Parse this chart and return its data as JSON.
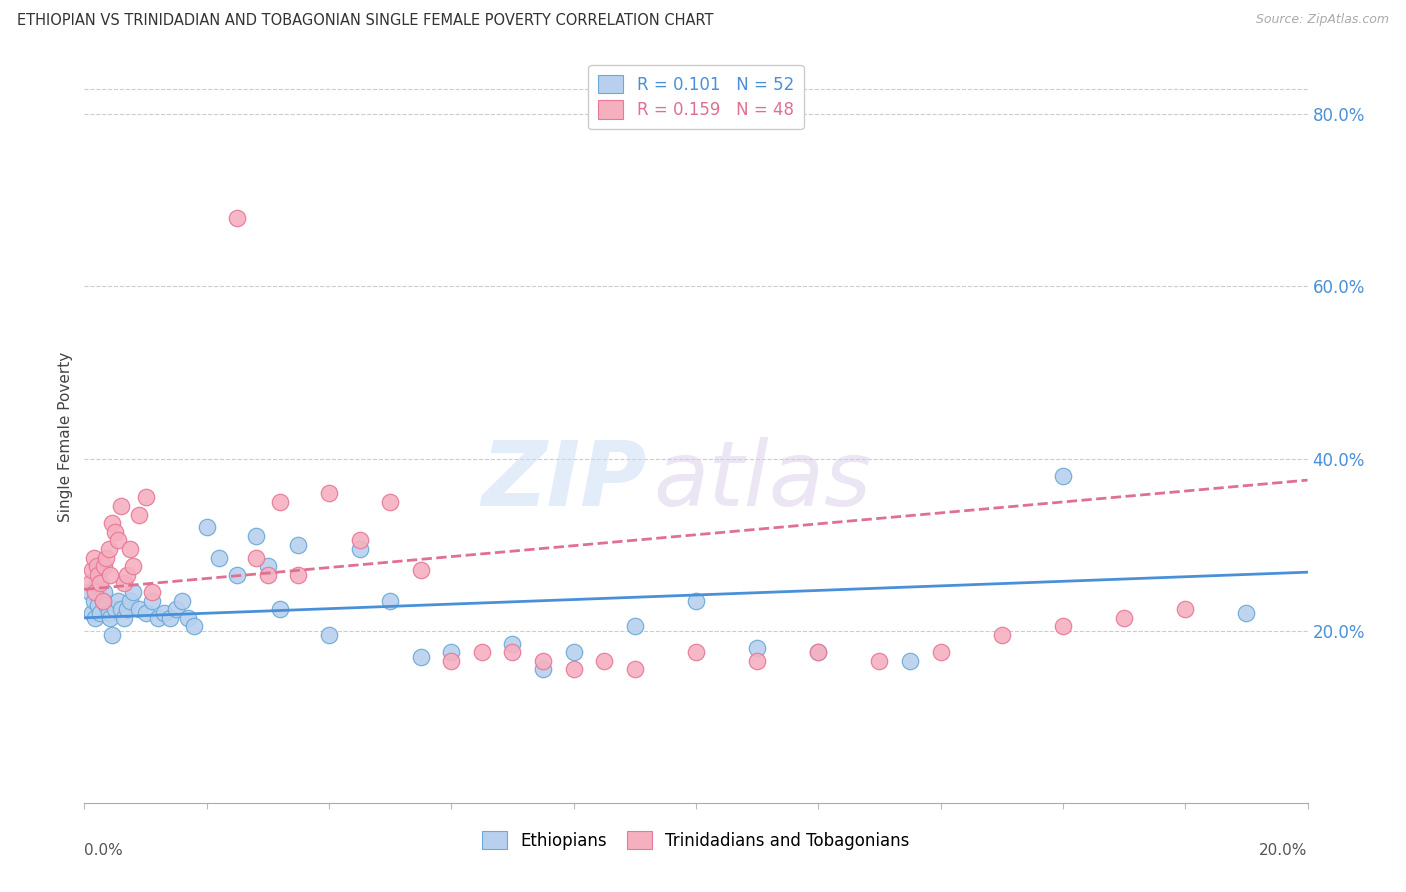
{
  "title": "ETHIOPIAN VS TRINIDADIAN AND TOBAGONIAN SINGLE FEMALE POVERTY CORRELATION CHART",
  "source": "Source: ZipAtlas.com",
  "ylabel": "Single Female Poverty",
  "blue_face": "#b8d0ee",
  "blue_edge": "#6aaad8",
  "pink_face": "#f5b0c0",
  "pink_edge": "#e87898",
  "blue_line": "#4a90d9",
  "pink_line": "#e07090",
  "right_tick_color": "#4a90d9",
  "yticks": [
    0.2,
    0.4,
    0.6,
    0.8
  ],
  "ytick_labels": [
    "20.0%",
    "40.0%",
    "60.0%",
    "80.0%"
  ],
  "xlim": [
    0.0,
    0.2
  ],
  "ylim": [
    0.0,
    0.85
  ],
  "blue_r": "0.101",
  "blue_n": "52",
  "pink_r": "0.159",
  "pink_n": "48",
  "eth_x": [
    0.001,
    0.0012,
    0.0015,
    0.0018,
    0.002,
    0.0022,
    0.0025,
    0.003,
    0.0032,
    0.0035,
    0.004,
    0.0042,
    0.0045,
    0.005,
    0.0055,
    0.006,
    0.0065,
    0.007,
    0.0075,
    0.008,
    0.009,
    0.01,
    0.011,
    0.012,
    0.013,
    0.014,
    0.015,
    0.016,
    0.017,
    0.018,
    0.02,
    0.022,
    0.025,
    0.028,
    0.03,
    0.032,
    0.035,
    0.04,
    0.045,
    0.05,
    0.055,
    0.06,
    0.07,
    0.075,
    0.08,
    0.09,
    0.1,
    0.11,
    0.12,
    0.135,
    0.16,
    0.19
  ],
  "eth_y": [
    0.245,
    0.22,
    0.235,
    0.215,
    0.255,
    0.23,
    0.22,
    0.235,
    0.245,
    0.23,
    0.22,
    0.215,
    0.195,
    0.225,
    0.235,
    0.225,
    0.215,
    0.225,
    0.235,
    0.245,
    0.225,
    0.22,
    0.235,
    0.215,
    0.22,
    0.215,
    0.225,
    0.235,
    0.215,
    0.205,
    0.32,
    0.285,
    0.265,
    0.31,
    0.275,
    0.225,
    0.3,
    0.195,
    0.295,
    0.235,
    0.17,
    0.175,
    0.185,
    0.155,
    0.175,
    0.205,
    0.235,
    0.18,
    0.175,
    0.165,
    0.38,
    0.22
  ],
  "tri_x": [
    0.001,
    0.0012,
    0.0015,
    0.0018,
    0.002,
    0.0022,
    0.0025,
    0.003,
    0.0032,
    0.0035,
    0.004,
    0.0042,
    0.0045,
    0.005,
    0.0055,
    0.006,
    0.0065,
    0.007,
    0.0075,
    0.008,
    0.009,
    0.01,
    0.011,
    0.025,
    0.028,
    0.03,
    0.032,
    0.035,
    0.04,
    0.045,
    0.05,
    0.055,
    0.06,
    0.065,
    0.07,
    0.075,
    0.08,
    0.085,
    0.09,
    0.1,
    0.11,
    0.12,
    0.13,
    0.14,
    0.15,
    0.16,
    0.17,
    0.18
  ],
  "tri_y": [
    0.255,
    0.27,
    0.285,
    0.245,
    0.275,
    0.265,
    0.255,
    0.235,
    0.275,
    0.285,
    0.295,
    0.265,
    0.325,
    0.315,
    0.305,
    0.345,
    0.255,
    0.265,
    0.295,
    0.275,
    0.335,
    0.355,
    0.245,
    0.68,
    0.285,
    0.265,
    0.35,
    0.265,
    0.36,
    0.305,
    0.35,
    0.27,
    0.165,
    0.175,
    0.175,
    0.165,
    0.155,
    0.165,
    0.155,
    0.175,
    0.165,
    0.175,
    0.165,
    0.175,
    0.195,
    0.205,
    0.215,
    0.225
  ]
}
